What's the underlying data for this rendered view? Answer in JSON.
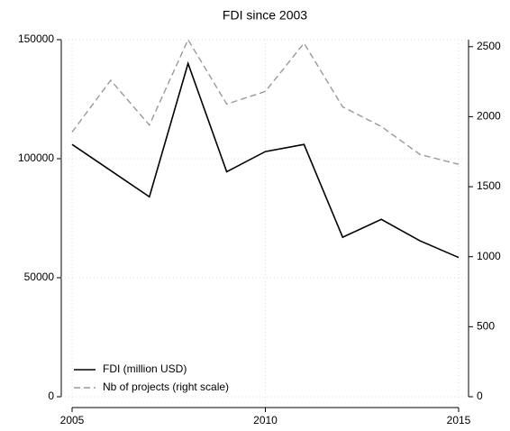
{
  "chart_data": {
    "type": "line",
    "title": "FDI since 2003",
    "x": [
      2005,
      2006,
      2007,
      2008,
      2009,
      2010,
      2011,
      2012,
      2013,
      2014,
      2015
    ],
    "series": [
      {
        "name": "FDI (million USD)",
        "color": "#000000",
        "dash": "solid",
        "values": [
          106000,
          95000,
          84000,
          140000,
          94500,
          103000,
          106000,
          67000,
          74500,
          65500,
          58500
        ]
      },
      {
        "name": "Nb of projects (right scale)",
        "color": "#999999",
        "dash": "dashed",
        "axis": "y2",
        "values": [
          1890,
          2260,
          1940,
          2550,
          2090,
          2180,
          2525,
          2070,
          1930,
          1730,
          1660
        ]
      }
    ],
    "xlim": [
      2005,
      2015
    ],
    "xticks": [
      2005,
      2010,
      2015
    ],
    "ylim": [
      0,
      150000
    ],
    "yticks": [
      0,
      50000,
      100000,
      150000
    ],
    "y2lim": [
      0,
      2550
    ],
    "y2ticks": [
      0,
      500,
      1000,
      1500,
      2000,
      2500
    ],
    "grid": true,
    "legend": "lower left"
  }
}
